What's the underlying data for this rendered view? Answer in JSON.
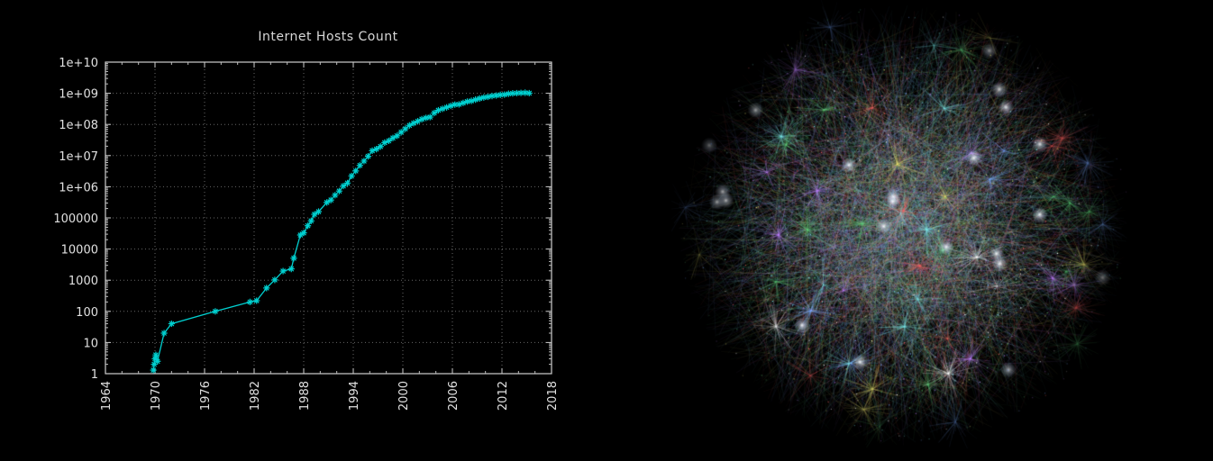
{
  "chart_data": {
    "type": "line",
    "title": "Internet Hosts Count",
    "xlabel": "",
    "ylabel": "",
    "xlim": [
      1964,
      2018
    ],
    "ylim": [
      1,
      10000000000
    ],
    "yscale": "log",
    "x_ticks": [
      "1964",
      "1970",
      "1976",
      "1982",
      "1988",
      "1994",
      "2000",
      "2006",
      "2012",
      "2018"
    ],
    "y_ticks": [
      "1",
      "10",
      "100",
      "1000",
      "10000",
      "100000",
      "1e+06",
      "1e+07",
      "1e+08",
      "1e+09",
      "1e+10"
    ],
    "grid": true,
    "series": [
      {
        "color": "#00d0d0",
        "marker": "star",
        "points": [
          [
            1969.8,
            1.3
          ],
          [
            1969.9,
            2
          ],
          [
            1970.0,
            3
          ],
          [
            1970.1,
            4
          ],
          [
            1970.3,
            2.5
          ],
          [
            1971.1,
            20
          ],
          [
            1972.0,
            40
          ],
          [
            1977.3,
            100
          ],
          [
            1981.5,
            200
          ],
          [
            1982.3,
            220
          ],
          [
            1983.5,
            562
          ],
          [
            1984.5,
            1024
          ],
          [
            1985.5,
            1961
          ],
          [
            1986.5,
            2308
          ],
          [
            1986.8,
            5089
          ],
          [
            1987.6,
            28174
          ],
          [
            1988.0,
            33000
          ],
          [
            1988.5,
            56000
          ],
          [
            1988.9,
            80000
          ],
          [
            1989.3,
            130000
          ],
          [
            1989.8,
            159000
          ],
          [
            1990.8,
            313000
          ],
          [
            1991.3,
            376000
          ],
          [
            1991.8,
            535000
          ],
          [
            1992.3,
            727000
          ],
          [
            1992.8,
            1056000
          ],
          [
            1993.3,
            1313000
          ],
          [
            1993.8,
            2217000
          ],
          [
            1994.3,
            3212000
          ],
          [
            1994.8,
            4852000
          ],
          [
            1995.3,
            6642000
          ],
          [
            1995.8,
            9472000
          ],
          [
            1996.3,
            14352000
          ],
          [
            1996.8,
            16146000
          ],
          [
            1997.3,
            19540000
          ],
          [
            1997.8,
            26053000
          ],
          [
            1998.3,
            29670000
          ],
          [
            1998.8,
            36739000
          ],
          [
            1999.3,
            43230000
          ],
          [
            1999.8,
            56218000
          ],
          [
            2000.3,
            72398000
          ],
          [
            2000.8,
            93047000
          ],
          [
            2001.3,
            109574000
          ],
          [
            2001.8,
            125888000
          ],
          [
            2002.3,
            147345000
          ],
          [
            2002.8,
            162128000
          ],
          [
            2003.3,
            171638000
          ],
          [
            2003.8,
            233101000
          ],
          [
            2004.3,
            285139000
          ],
          [
            2004.8,
            317646000
          ],
          [
            2005.3,
            353284000
          ],
          [
            2005.8,
            394992000
          ],
          [
            2006.3,
            433193000
          ],
          [
            2006.8,
            439286000
          ],
          [
            2007.3,
            489774000
          ],
          [
            2007.8,
            541677000
          ],
          [
            2008.3,
            570937000
          ],
          [
            2008.8,
            625226000
          ],
          [
            2009.3,
            681064000
          ],
          [
            2009.8,
            732740000
          ],
          [
            2010.3,
            768913000
          ],
          [
            2010.8,
            818374000
          ],
          [
            2011.3,
            849870000
          ],
          [
            2011.8,
            888239000
          ],
          [
            2012.3,
            908585000
          ],
          [
            2012.8,
            963518000
          ],
          [
            2013.3,
            996230000
          ],
          [
            2013.8,
            1010000000
          ],
          [
            2014.3,
            1028000000
          ],
          [
            2014.8,
            1040000000
          ],
          [
            2015.3,
            1010000000
          ]
        ]
      }
    ]
  },
  "network_image": {
    "palette": [
      "#ffffff",
      "#7aa8ff",
      "#5fd07a",
      "#ff6060",
      "#e8e070",
      "#7ae8e8",
      "#c080ff"
    ]
  }
}
